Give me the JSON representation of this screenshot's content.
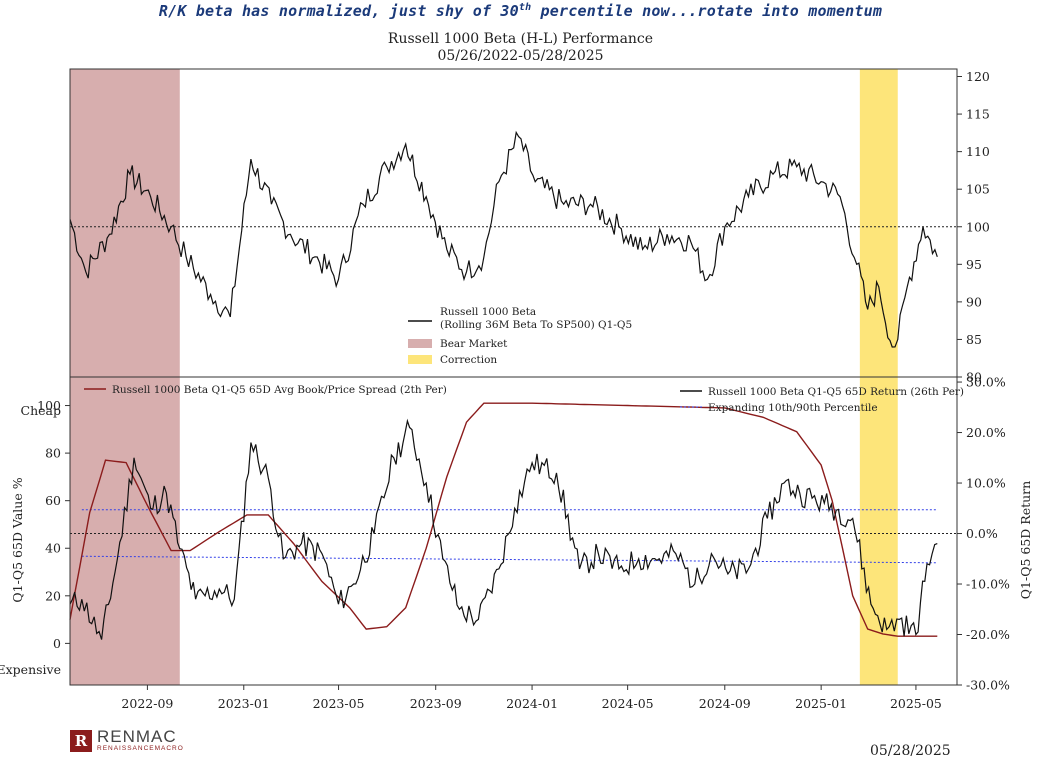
{
  "headline": {
    "pre": "R/K beta has normalized, just shy of 30",
    "sup": "th",
    "post": " percentile now...rotate into momentum"
  },
  "footer": {
    "brand": "RENMAC",
    "brand_sub": "RENAISSANCEMACRO",
    "date": "05/28/2025"
  },
  "chart_data": [
    {
      "type": "line",
      "title": "Russell 1000 Beta (H-L) Performance",
      "subtitle": "05/26/2022-05/28/2025",
      "y_right_ticks": [
        "120",
        "115",
        "110",
        "105",
        "100",
        "95",
        "90",
        "85",
        "80"
      ],
      "ylim": [
        80,
        121
      ],
      "reference_line": 100,
      "x": [
        "2022-05-26",
        "2022-06-15",
        "2022-07-15",
        "2022-08-10",
        "2022-09-05",
        "2022-10-01",
        "2022-10-20",
        "2022-11-20",
        "2022-12-15",
        "2023-01-10",
        "2023-02-05",
        "2023-03-01",
        "2023-04-01",
        "2023-05-01",
        "2023-06-01",
        "2023-07-01",
        "2023-07-25",
        "2023-08-20",
        "2023-09-15",
        "2023-10-10",
        "2023-11-01",
        "2023-11-20",
        "2023-12-15",
        "2024-01-05",
        "2024-02-10",
        "2024-03-15",
        "2024-04-20",
        "2024-05-20",
        "2024-06-20",
        "2024-07-20",
        "2024-08-10",
        "2024-09-01",
        "2024-10-01",
        "2024-11-01",
        "2024-12-01",
        "2025-01-01",
        "2025-01-25",
        "2025-02-15",
        "2025-03-01",
        "2025-03-15",
        "2025-04-01",
        "2025-04-08",
        "2025-04-20",
        "2025-05-10",
        "2025-05-28"
      ],
      "series": [
        {
          "name": "Russell 1000 Beta (Rolling 36M Beta To SP500) Q1-Q5",
          "values": [
            101,
            94,
            99,
            107,
            104,
            100,
            96,
            91,
            88,
            109,
            103,
            99,
            96,
            93,
            103,
            108,
            111,
            104,
            97,
            94,
            96,
            106,
            112,
            106,
            103,
            103,
            100,
            97,
            99,
            98,
            93,
            100,
            104,
            107,
            108,
            106,
            104,
            95,
            89,
            92,
            84,
            85,
            92,
            100,
            96
          ]
        }
      ],
      "shaded": [
        {
          "label": "Bear Market",
          "start": "2022-05-26",
          "end": "2022-10-12",
          "color": "#d7aeae"
        },
        {
          "label": "Correction",
          "start": "2025-02-19",
          "end": "2025-04-08",
          "color": "#fde57a"
        }
      ],
      "legend": [
        {
          "label": "Russell 1000 Beta",
          "label2": "(Rolling 36M Beta To SP500) Q1-Q5"
        },
        {
          "label": "Bear Market"
        },
        {
          "label": "Correction"
        }
      ]
    },
    {
      "type": "line",
      "x_ticks": [
        "2022-09",
        "2023-01",
        "2023-05",
        "2023-09",
        "2024-01",
        "2024-05",
        "2024-09",
        "2025-01",
        "2025-05"
      ],
      "y_left": {
        "label": "Q1-Q5 65D Value %",
        "ticks": [
          "100",
          "80",
          "60",
          "40",
          "20",
          "0"
        ],
        "ylim": [
          -17.5,
          112
        ],
        "top_note": "Cheap",
        "bottom_note": "Expensive"
      },
      "y_right": {
        "label": "Q1-Q5 65D Return",
        "ticks": [
          "30.0%",
          "20.0%",
          "10.0%",
          "0.0%",
          "-10.0%",
          "-20.0%",
          "-30.0%"
        ],
        "ylim": [
          -30,
          31
        ]
      },
      "legend": [
        {
          "label": "Russell 1000 Beta Q1-Q5 65D Avg Book/Price Spread (2th Per)"
        },
        {
          "label": "Russell 1000 Beta Q1-Q5 65D Return (26th Per)"
        },
        {
          "label": "Expanding 10th/90th Percentile"
        }
      ],
      "value_spread": {
        "x": [
          "2022-05-26",
          "2022-06-20",
          "2022-07-10",
          "2022-08-05",
          "2022-09-01",
          "2022-10-01",
          "2022-10-25",
          "2022-12-01",
          "2023-01-05",
          "2023-02-01",
          "2023-03-05",
          "2023-04-10",
          "2023-05-15",
          "2023-06-05",
          "2023-07-01",
          "2023-07-25",
          "2023-08-20",
          "2023-09-15",
          "2023-10-10",
          "2023-11-01",
          "2024-01-01",
          "2024-05-01",
          "2024-09-01",
          "2024-10-20",
          "2024-12-01",
          "2025-01-01",
          "2025-01-15",
          "2025-02-10",
          "2025-03-01",
          "2025-03-20",
          "2025-04-08",
          "2025-05-28"
        ],
        "values": [
          10,
          55,
          77,
          76,
          58,
          39,
          39,
          47,
          54,
          54,
          42,
          26,
          15,
          6,
          7,
          15,
          40,
          70,
          93,
          101,
          101,
          100,
          99,
          95,
          89,
          75,
          60,
          20,
          6,
          4,
          3,
          3
        ]
      },
      "return_65d": {
        "x": [
          "2022-05-26",
          "2022-06-10",
          "2022-07-05",
          "2022-07-25",
          "2022-08-15",
          "2022-09-05",
          "2022-09-25",
          "2022-10-12",
          "2022-11-01",
          "2022-12-01",
          "2022-12-20",
          "2023-01-10",
          "2023-02-01",
          "2023-02-20",
          "2023-03-15",
          "2023-04-10",
          "2023-05-01",
          "2023-05-20",
          "2023-06-15",
          "2023-07-10",
          "2023-07-30",
          "2023-08-20",
          "2023-09-10",
          "2023-10-01",
          "2023-10-25",
          "2023-11-20",
          "2023-12-10",
          "2024-01-01",
          "2024-02-01",
          "2024-03-01",
          "2024-03-25",
          "2024-04-20",
          "2024-05-15",
          "2024-06-10",
          "2024-07-01",
          "2024-07-25",
          "2024-08-15",
          "2024-09-05",
          "2024-10-01",
          "2024-10-25",
          "2024-11-15",
          "2024-12-05",
          "2025-01-05",
          "2025-02-10",
          "2025-03-05",
          "2025-03-25",
          "2025-04-10",
          "2025-05-01",
          "2025-05-15",
          "2025-05-28"
        ],
        "values": [
          -14,
          -13,
          -21,
          -5,
          15,
          5,
          8,
          -3,
          -13,
          -11,
          -13,
          18,
          11,
          -5,
          -2,
          -4,
          -14,
          -10,
          0,
          15,
          21,
          10,
          -5,
          -15,
          -17,
          -7,
          5,
          14,
          12,
          -7,
          -4,
          -7,
          -5,
          -5,
          -4,
          -10,
          -4,
          -8,
          -7,
          3,
          10,
          8,
          6,
          3,
          -14,
          -19,
          -17,
          -20,
          -6,
          -2
        ]
      },
      "percentile_lines": {
        "p90": [
          4.7,
          4.7
        ],
        "p10": [
          -4.5,
          -5.8
        ]
      },
      "reference_line": 0
    }
  ],
  "colors": {
    "black": "#111111",
    "maroon": "#8b1c1c",
    "blue": "#3340e8",
    "bear": "#d7aeae",
    "correction": "#fde57a"
  }
}
